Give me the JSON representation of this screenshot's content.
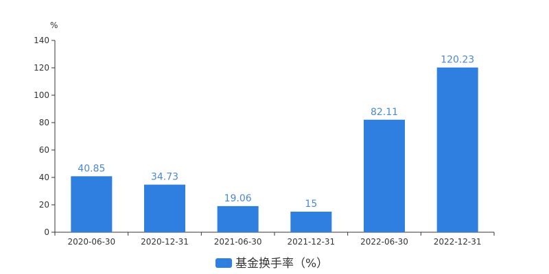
{
  "chart_data": {
    "type": "bar",
    "y_unit": "%",
    "categories": [
      "2020-06-30",
      "2020-12-31",
      "2021-06-30",
      "2021-12-31",
      "2022-06-30",
      "2022-12-31"
    ],
    "series": [
      {
        "name": "基金换手率（%）",
        "values": [
          40.85,
          34.73,
          19.06,
          15,
          82.11,
          120.23
        ],
        "color": "#2e7fe0"
      }
    ],
    "data_labels": [
      "40.85",
      "34.73",
      "19.06",
      "15",
      "82.11",
      "120.23"
    ],
    "y_ticks": [
      0,
      20,
      40,
      60,
      80,
      100,
      120,
      140
    ],
    "ylim": [
      0,
      140
    ],
    "grid": false,
    "legend_position": "bottom-center"
  }
}
